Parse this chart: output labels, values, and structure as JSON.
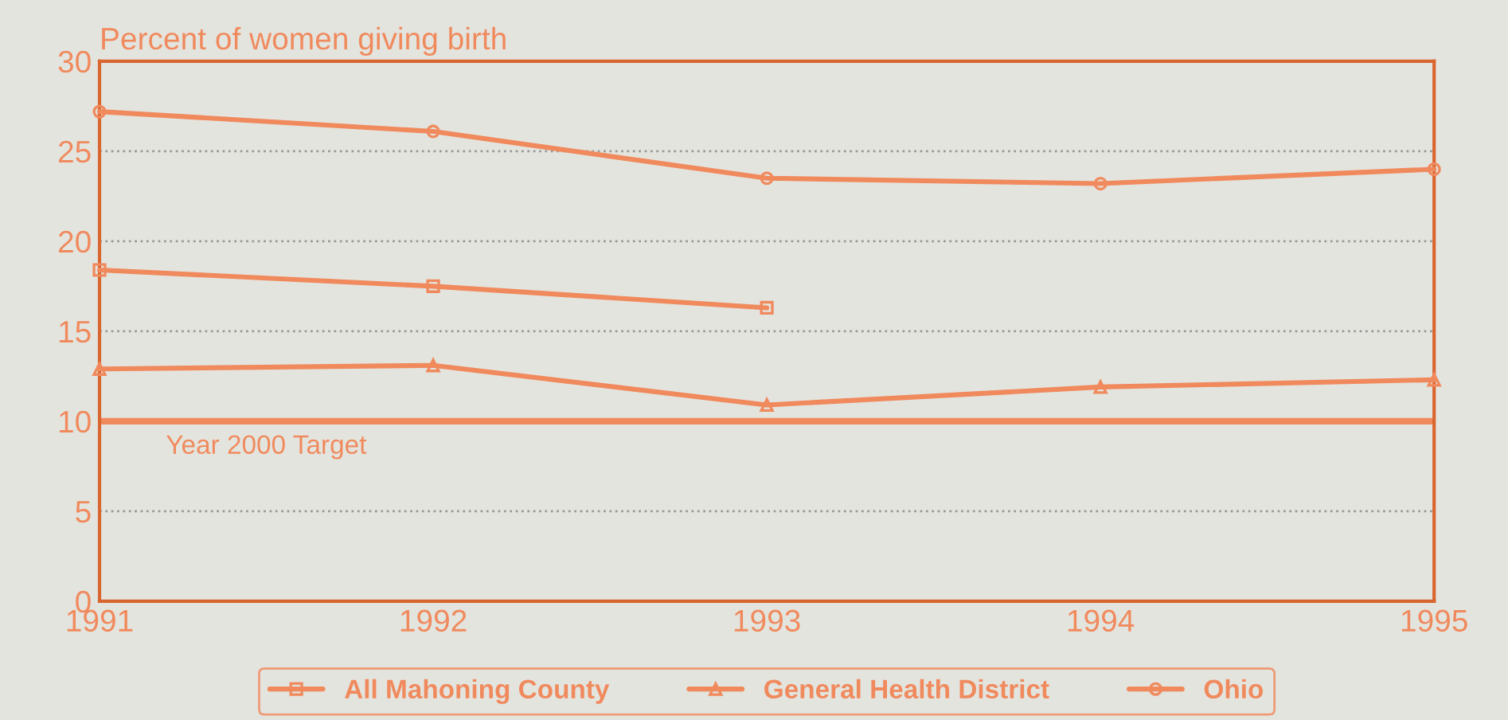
{
  "chart_data": {
    "type": "line",
    "ylabel": "Percent of women giving birth",
    "x": [
      1991,
      1992,
      1993,
      1994,
      1995
    ],
    "xlim": [
      1991,
      1995
    ],
    "xticks": [
      1991,
      1992,
      1993,
      1994,
      1995
    ],
    "ylim": [
      0,
      30
    ],
    "yticks": [
      0,
      5,
      10,
      15,
      20,
      25,
      30
    ],
    "grid": "y",
    "legend": "bottom",
    "series": [
      {
        "name": "All Mahoning County",
        "color": "#f08a5d",
        "marker": "square",
        "values": [
          18.4,
          17.5,
          16.3,
          null,
          null
        ]
      },
      {
        "name": "General Health District",
        "color": "#f08a5d",
        "marker": "triangle",
        "values": [
          12.9,
          13.1,
          10.9,
          11.9,
          12.3
        ]
      },
      {
        "name": "Ohio",
        "color": "#f08a5d",
        "marker": "circle",
        "values": [
          27.2,
          26.1,
          23.5,
          23.2,
          24.0
        ]
      }
    ],
    "ref_lines": [
      {
        "axis": "y",
        "value": 10,
        "label": "Year 2000 Target",
        "color": "#f08a5d"
      }
    ]
  }
}
